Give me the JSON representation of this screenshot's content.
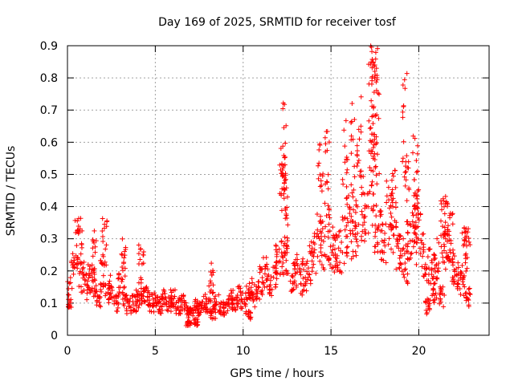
{
  "chart_data": {
    "type": "scatter",
    "title": "Day 169 of 2025, SRMTID for receiver tosf",
    "xlabel": "GPS time / hours",
    "ylabel": "SRMTID / TECUs",
    "xlim": [
      0,
      24
    ],
    "ylim": [
      0,
      0.9
    ],
    "xticks": [
      0,
      5,
      10,
      15,
      20
    ],
    "xtick_labels": [
      "0",
      "5",
      "10",
      "15",
      "20"
    ],
    "yticks": [
      0,
      0.1,
      0.2,
      0.3,
      0.4,
      0.5,
      0.6,
      0.7,
      0.8,
      0.9
    ],
    "ytick_labels": [
      "0",
      "0.1",
      "0.2",
      "0.3",
      "0.4",
      "0.5",
      "0.6",
      "0.7",
      "0.8",
      "0.9"
    ],
    "grid": true,
    "marker": "+",
    "marker_color": "#ff0000",
    "series": [
      {
        "name": "SRMTID",
        "x": [
          0.0,
          0.3,
          0.5,
          0.8,
          1.0,
          1.3,
          1.5,
          1.8,
          2.0,
          2.3,
          2.5,
          2.8,
          3.0,
          3.3,
          3.5,
          3.8,
          4.0,
          4.3,
          4.5,
          4.8,
          5.0,
          5.3,
          5.5,
          5.8,
          6.0,
          6.3,
          6.5,
          6.8,
          7.0,
          7.3,
          7.5,
          7.8,
          8.0,
          8.3,
          8.5,
          8.8,
          9.0,
          9.3,
          9.5,
          9.8,
          10.0,
          10.3,
          10.5,
          10.8,
          11.0,
          11.3,
          11.5,
          11.8,
          12.0,
          12.3,
          12.5,
          12.8,
          13.0,
          13.3,
          13.5,
          13.8,
          14.0,
          14.3,
          14.5,
          14.8,
          15.0,
          15.3,
          15.5,
          15.8,
          16.0,
          16.3,
          16.5,
          16.8,
          17.0,
          17.3,
          17.5,
          17.8,
          18.0,
          18.3,
          18.5,
          18.8,
          19.0,
          19.3,
          19.5,
          19.8,
          20.0,
          20.3,
          20.5,
          20.8,
          21.0,
          21.3,
          21.5,
          21.8,
          22.0,
          22.3,
          22.5,
          22.8,
          0.1,
          0.7,
          2.1,
          3.2,
          12.3,
          12.3,
          12.2,
          12.4,
          14.4,
          14.8,
          15.8,
          16.2,
          16.6,
          17.2,
          17.4,
          17.4,
          17.5,
          17.5,
          17.6,
          18.6,
          19.2,
          19.3,
          19.8,
          19.9,
          21.4,
          21.5,
          21.7,
          22.6,
          22.8,
          20.5,
          20.9,
          6.9,
          7.3,
          10.3,
          4.2,
          1.5,
          8.2
        ],
        "y": [
          0.15,
          0.2,
          0.28,
          0.18,
          0.15,
          0.18,
          0.16,
          0.12,
          0.2,
          0.15,
          0.13,
          0.1,
          0.16,
          0.12,
          0.09,
          0.1,
          0.11,
          0.13,
          0.12,
          0.1,
          0.11,
          0.09,
          0.13,
          0.1,
          0.12,
          0.09,
          0.1,
          0.08,
          0.07,
          0.09,
          0.08,
          0.1,
          0.09,
          0.07,
          0.1,
          0.08,
          0.09,
          0.11,
          0.1,
          0.12,
          0.11,
          0.13,
          0.14,
          0.12,
          0.17,
          0.19,
          0.16,
          0.2,
          0.22,
          0.24,
          0.25,
          0.18,
          0.2,
          0.17,
          0.19,
          0.22,
          0.26,
          0.3,
          0.28,
          0.32,
          0.27,
          0.25,
          0.26,
          0.3,
          0.35,
          0.32,
          0.33,
          0.4,
          0.36,
          0.45,
          0.35,
          0.32,
          0.3,
          0.38,
          0.35,
          0.28,
          0.25,
          0.22,
          0.3,
          0.35,
          0.3,
          0.25,
          0.22,
          0.2,
          0.24,
          0.12,
          0.28,
          0.3,
          0.2,
          0.18,
          0.16,
          0.12,
          0.09,
          0.32,
          0.29,
          0.24,
          0.58,
          0.52,
          0.44,
          0.36,
          0.48,
          0.5,
          0.53,
          0.59,
          0.6,
          0.78,
          0.86,
          0.82,
          0.74,
          0.67,
          0.64,
          0.45,
          0.64,
          0.43,
          0.5,
          0.42,
          0.35,
          0.33,
          0.31,
          0.27,
          0.26,
          0.09,
          0.14,
          0.04,
          0.04,
          0.06,
          0.22,
          0.26,
          0.18
        ]
      }
    ]
  }
}
